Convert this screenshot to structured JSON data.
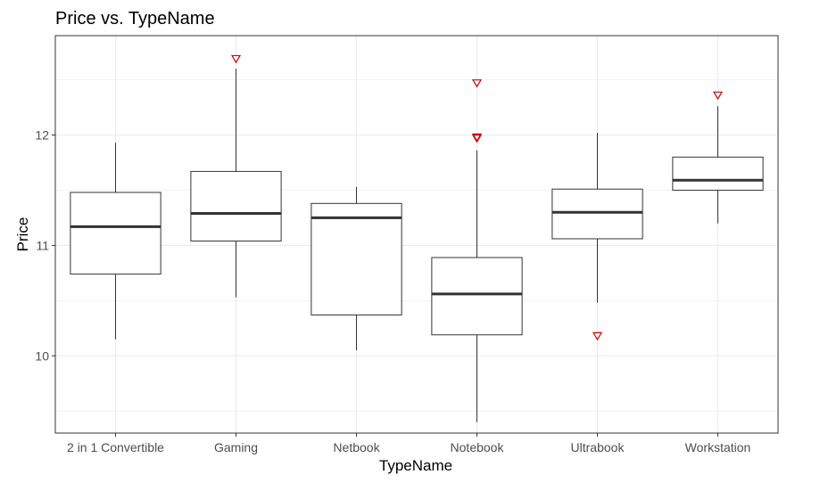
{
  "chart_data": {
    "type": "boxplot",
    "title": "Price vs. TypeName",
    "xlabel": "TypeName",
    "ylabel": "Price",
    "categories": [
      "2 in 1 Convertible",
      "Gaming",
      "Netbook",
      "Notebook",
      "Ultrabook",
      "Workstation"
    ],
    "ylim": [
      9.3,
      12.9
    ],
    "yticks": [
      10,
      11,
      12
    ],
    "ytick_labels": [
      "10",
      "11",
      "12"
    ],
    "grid": true,
    "legend": "none",
    "boxes": [
      {
        "category": "2 in 1 Convertible",
        "whisker_low": 10.15,
        "q1": 10.74,
        "median": 11.17,
        "q3": 11.48,
        "whisker_high": 11.93,
        "outliers": []
      },
      {
        "category": "Gaming",
        "whisker_low": 10.53,
        "q1": 11.04,
        "median": 11.29,
        "q3": 11.67,
        "whisker_high": 12.6,
        "outliers": [
          12.69
        ]
      },
      {
        "category": "Netbook",
        "whisker_low": 10.05,
        "q1": 10.37,
        "median": 11.25,
        "q3": 11.38,
        "whisker_high": 11.53,
        "outliers": []
      },
      {
        "category": "Notebook",
        "whisker_low": 9.4,
        "q1": 10.19,
        "median": 10.56,
        "q3": 10.89,
        "whisker_high": 11.86,
        "outliers": [
          11.97,
          11.98,
          12.47
        ]
      },
      {
        "category": "Ultrabook",
        "whisker_low": 10.48,
        "q1": 11.06,
        "median": 11.3,
        "q3": 11.51,
        "whisker_high": 12.02,
        "outliers": [
          10.18
        ]
      },
      {
        "category": "Workstation",
        "whisker_low": 11.2,
        "q1": 11.5,
        "median": 11.59,
        "q3": 11.8,
        "whisker_high": 12.26,
        "outliers": [
          12.36
        ]
      }
    ],
    "colors": {
      "box_fill": "#ffffff",
      "box_stroke": "#333333",
      "median": "#333333",
      "outlier": "#cc0000",
      "grid": "#ebebeb",
      "panel_border": "#333333",
      "title": "#000000",
      "axis_label": "#000000",
      "tick_label": "#4d4d4d"
    },
    "outlier_shape": "triangle-down-open"
  }
}
